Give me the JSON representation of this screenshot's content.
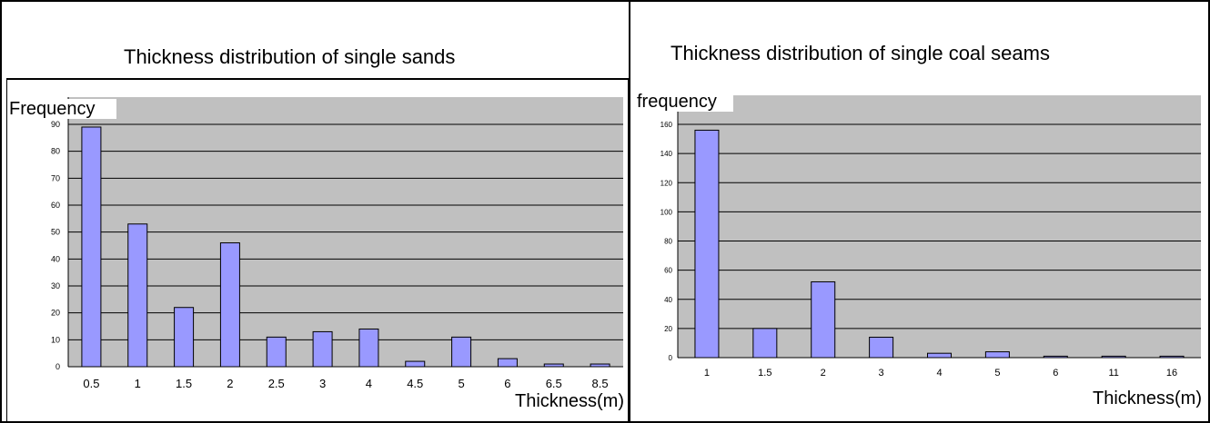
{
  "chart_data": [
    {
      "type": "bar",
      "title": "Thickness distribution of single sands",
      "ylabel": "Frequency",
      "xlabel": "Thickness(m)",
      "categories": [
        "0.5",
        "1",
        "1.5",
        "2",
        "2.5",
        "3",
        "4",
        "4.5",
        "5",
        "6",
        "6.5",
        "8.5"
      ],
      "values": [
        89,
        53,
        22,
        46,
        11,
        13,
        14,
        2,
        11,
        3,
        1,
        1
      ],
      "ylim": [
        0,
        90
      ],
      "yticks": [
        "0",
        "10",
        "20",
        "30",
        "40",
        "50",
        "60",
        "70",
        "80",
        "90"
      ],
      "grid": true
    },
    {
      "type": "bar",
      "title": "Thickness distribution of single coal seams",
      "ylabel": "frequency",
      "xlabel": "Thickness(m)",
      "categories": [
        "1",
        "1.5",
        "2",
        "3",
        "4",
        "5",
        "6",
        "11",
        "16"
      ],
      "values": [
        156,
        20,
        52,
        14,
        3,
        4,
        1,
        1,
        1
      ],
      "ylim": [
        0,
        160
      ],
      "yticks": [
        "0",
        "20",
        "40",
        "60",
        "80",
        "100",
        "120",
        "140",
        "160"
      ],
      "grid": true
    }
  ],
  "colors": {
    "plot_area": "#c0c0c0",
    "bar_fill": "#9999ff",
    "bar_stroke": "#000000",
    "gridline": "#000000"
  }
}
